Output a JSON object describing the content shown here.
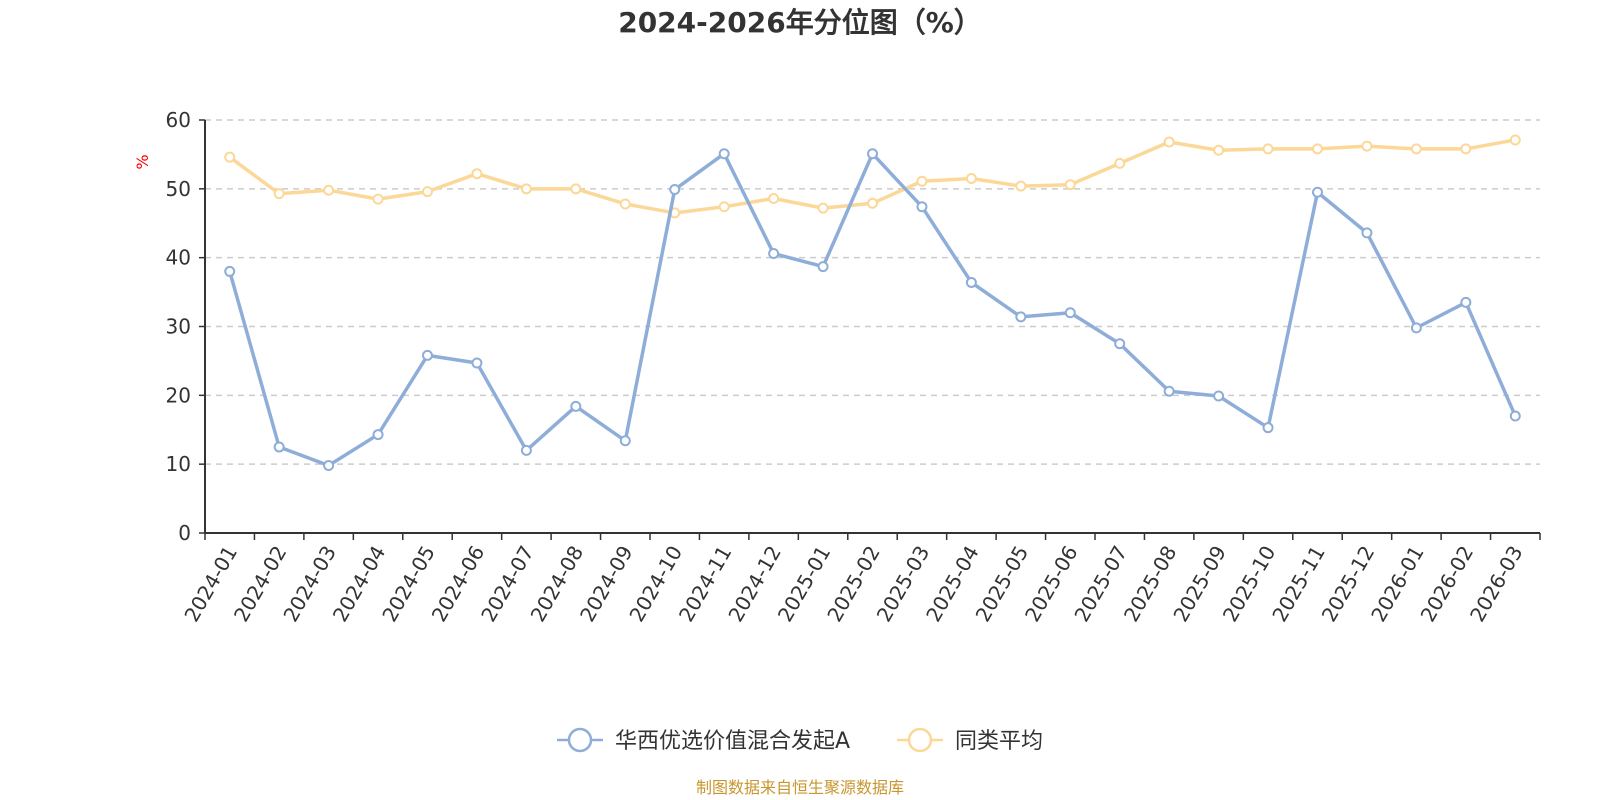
{
  "chart_data": {
    "type": "line",
    "title": "2024-2026年分位图（%）",
    "ylabel": "%",
    "ylim": [
      0,
      60
    ],
    "yticks": [
      0,
      10,
      20,
      30,
      40,
      50,
      60
    ],
    "grid": true,
    "legend_position": "bottom",
    "categories": [
      "2024-01",
      "2024-02",
      "2024-03",
      "2024-04",
      "2024-05",
      "2024-06",
      "2024-07",
      "2024-08",
      "2024-09",
      "2024-10",
      "2024-11",
      "2024-12",
      "2025-01",
      "2025-02",
      "2025-03",
      "2025-04",
      "2025-05",
      "2025-06",
      "2025-07",
      "2025-08",
      "2025-09",
      "2025-10",
      "2025-11",
      "2025-12",
      "2026-01",
      "2026-02",
      "2026-03"
    ],
    "series": [
      {
        "name": "华西优选价值混合发起A",
        "color": "#8eadd8",
        "values": [
          38.0,
          12.5,
          9.8,
          14.3,
          25.8,
          24.7,
          12.0,
          18.4,
          13.4,
          49.9,
          55.1,
          40.6,
          38.7,
          55.1,
          47.4,
          36.4,
          31.4,
          32.0,
          27.5,
          20.6,
          19.9,
          15.3,
          49.5,
          43.6,
          29.8,
          33.5,
          17.0
        ]
      },
      {
        "name": "同类平均",
        "color": "#fcd898",
        "values": [
          54.6,
          49.3,
          49.8,
          48.5,
          49.6,
          52.2,
          50.0,
          50.0,
          47.8,
          46.5,
          47.4,
          48.6,
          47.2,
          47.9,
          51.1,
          51.5,
          50.4,
          50.6,
          53.7,
          56.8,
          55.6,
          55.8,
          55.8,
          56.2,
          55.8,
          55.8,
          57.1
        ]
      }
    ]
  },
  "footer": {
    "source_text": "制图数据来自恒生聚源数据库"
  }
}
